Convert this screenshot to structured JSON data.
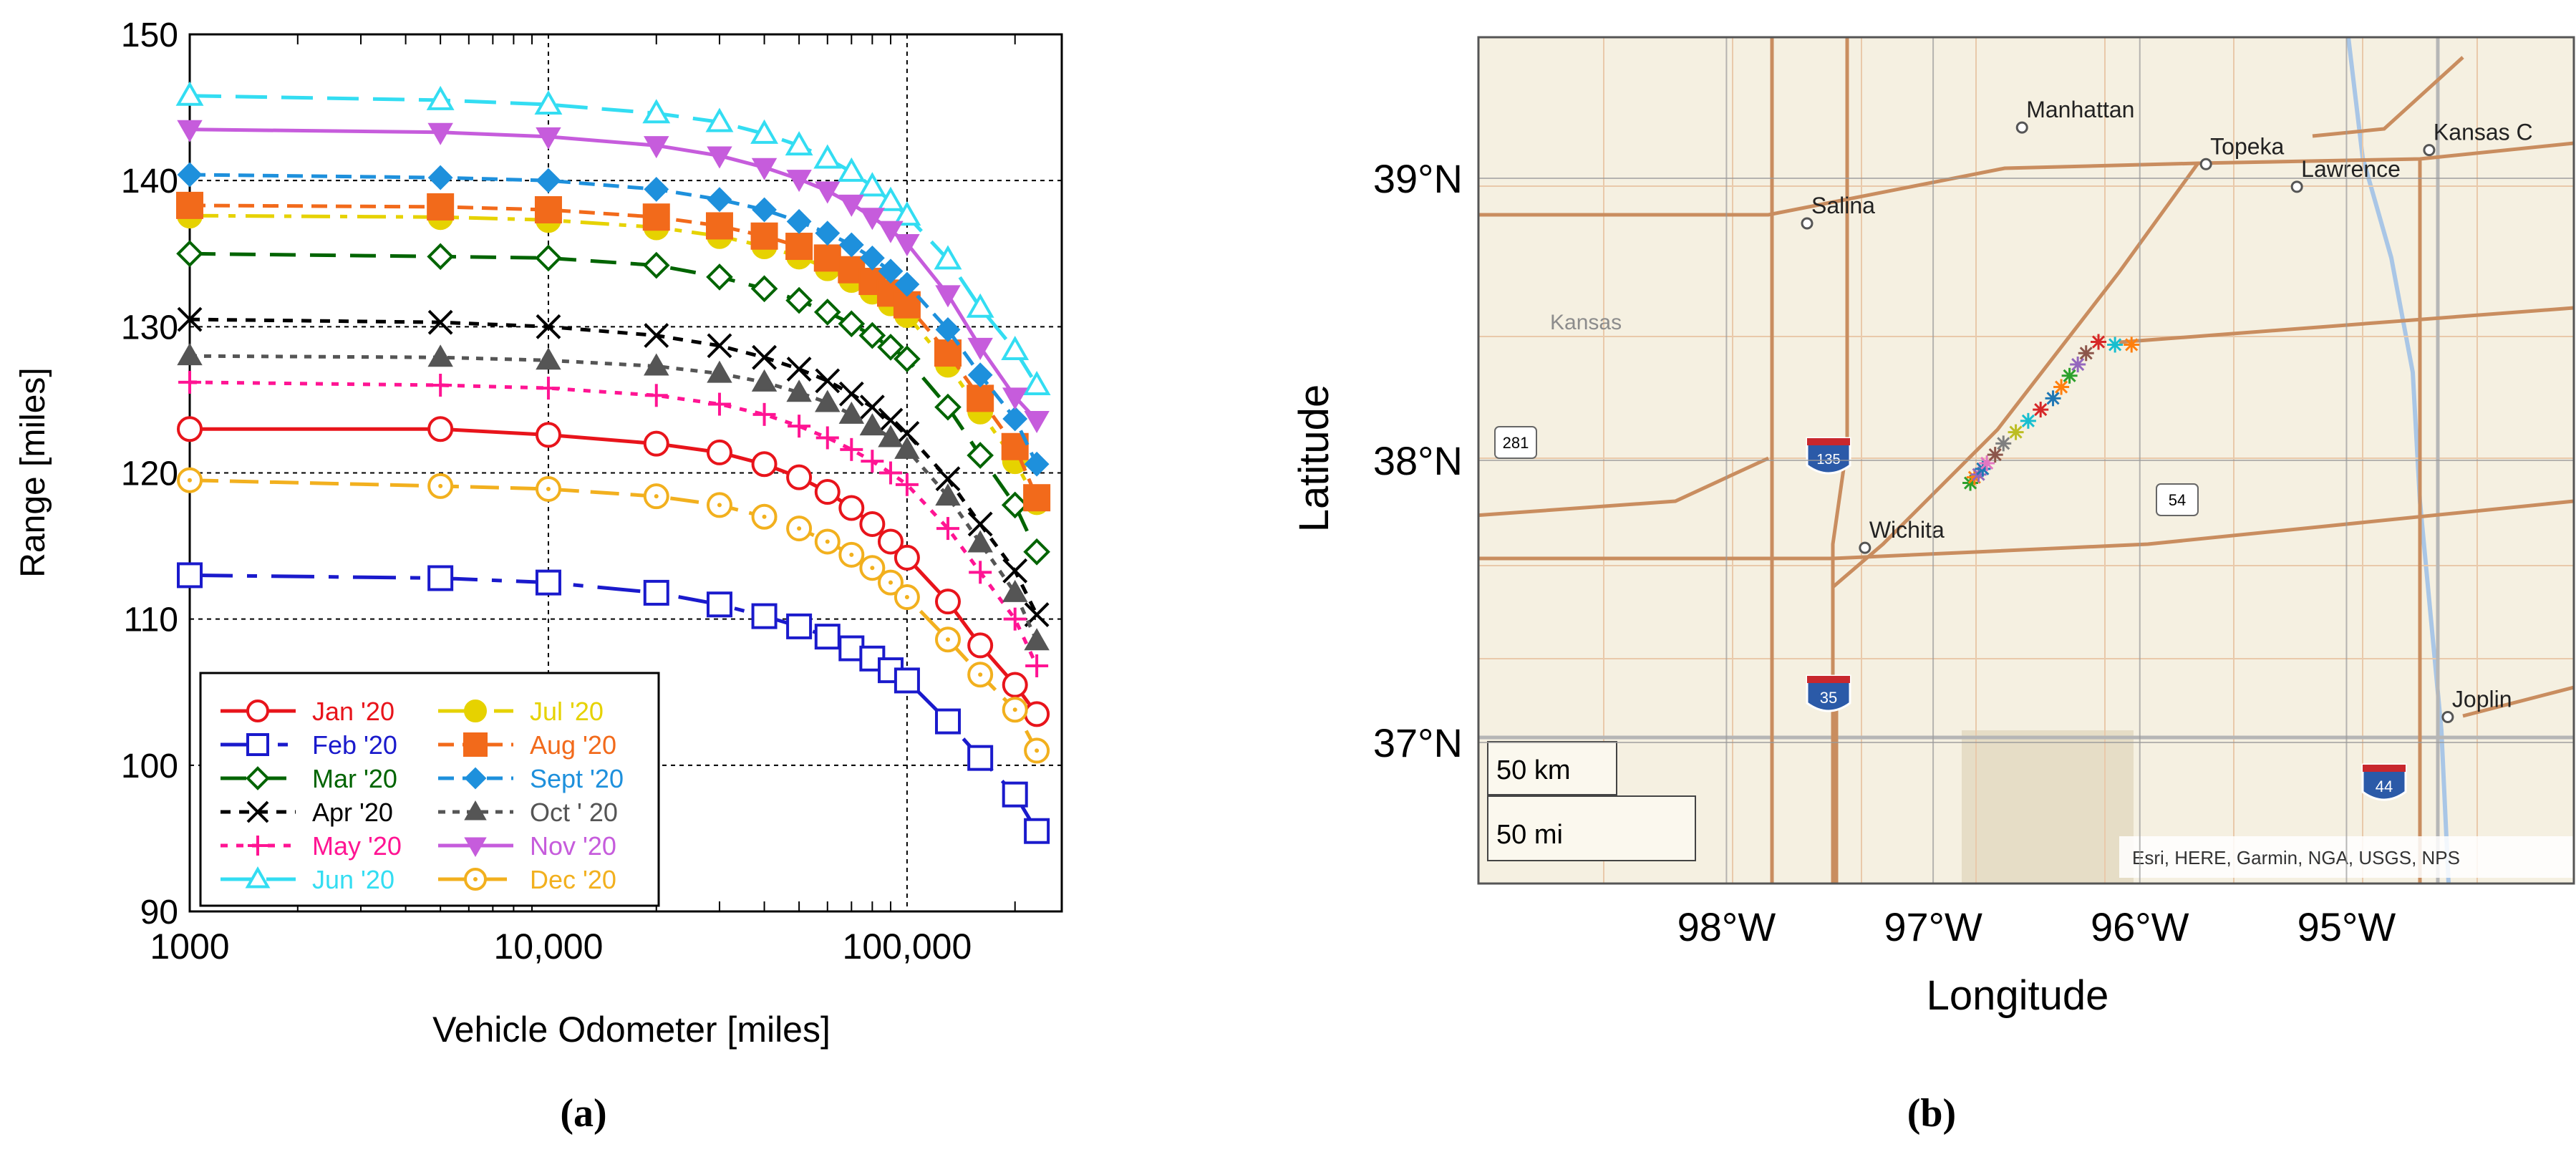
{
  "chart_data": [
    {
      "type": "line",
      "panel_label": "(a)",
      "xscale": "log",
      "xlim": [
        1000,
        270000
      ],
      "ylim": [
        90,
        150
      ],
      "xlabel": "Vehicle Odometer [miles]",
      "ylabel": "Range [miles]",
      "xticks": [
        {
          "value": 1000,
          "label": "1000"
        },
        {
          "value": 10000,
          "label": "10,000"
        },
        {
          "value": 100000,
          "label": "100,000"
        }
      ],
      "yticks": [
        90,
        100,
        110,
        120,
        130,
        140,
        150
      ],
      "grid": true,
      "legend_position": "lower-left",
      "x": [
        1000,
        5000,
        10000,
        20000,
        30000,
        40000,
        50000,
        60000,
        70000,
        80000,
        90000,
        100000,
        130000,
        160000,
        200000,
        230000
      ],
      "series": [
        {
          "name": "Jan '20",
          "color": "#e8141b",
          "dash": "",
          "marker": "circle-open",
          "legend_col": 0,
          "values": [
            123,
            123,
            122.6,
            122,
            121.4,
            120.6,
            119.7,
            118.7,
            117.6,
            116.5,
            115.3,
            114.2,
            111.2,
            108.2,
            105.5,
            103.5
          ],
          "marker_idx": [
            0,
            1,
            2,
            3,
            4,
            5,
            6,
            7,
            8,
            9,
            10,
            11,
            12,
            13,
            14,
            15
          ]
        },
        {
          "name": "Feb '20",
          "color": "#1a1acc",
          "dash": "60 20 14 20",
          "marker": "square-open",
          "legend_col": 0,
          "values": [
            113,
            112.8,
            112.5,
            111.8,
            111,
            110.2,
            109.5,
            108.8,
            108,
            107.3,
            106.5,
            105.8,
            103,
            100.5,
            98,
            95.5
          ],
          "marker_idx": [
            0,
            1,
            2,
            3,
            4,
            5,
            6,
            7,
            8,
            9,
            10,
            11,
            12,
            13,
            14,
            15
          ]
        },
        {
          "name": "Mar '20",
          "color": "#006400",
          "dash": "36 20",
          "marker": "diamond-open",
          "legend_col": 0,
          "values": [
            135,
            134.8,
            134.7,
            134.2,
            133.4,
            132.6,
            131.8,
            131,
            130.2,
            129.4,
            128.6,
            127.8,
            124.5,
            121.2,
            117.8,
            114.6
          ],
          "marker_idx": [
            0,
            1,
            2,
            3,
            4,
            5,
            6,
            7,
            8,
            9,
            10,
            11,
            12,
            13,
            14,
            15
          ]
        },
        {
          "name": "Apr '20",
          "color": "#000000",
          "dash": "14 12",
          "marker": "x",
          "legend_col": 0,
          "values": [
            130.5,
            130.3,
            130,
            129.4,
            128.7,
            127.9,
            127.1,
            126.3,
            125.4,
            124.5,
            123.6,
            122.7,
            119.6,
            116.5,
            113.3,
            110.3
          ],
          "marker_idx": [
            0,
            1,
            2,
            3,
            4,
            5,
            6,
            7,
            8,
            9,
            10,
            11,
            12,
            13,
            14,
            15
          ]
        },
        {
          "name": "May '20",
          "color": "#ff1493",
          "dash": "10 12",
          "marker": "plus",
          "legend_col": 0,
          "values": [
            126.2,
            126,
            125.8,
            125.3,
            124.7,
            124,
            123.2,
            122.4,
            121.6,
            120.8,
            120,
            119.2,
            116.2,
            113.2,
            110,
            106.8
          ],
          "marker_idx": [
            0,
            1,
            2,
            3,
            4,
            5,
            6,
            7,
            8,
            9,
            10,
            11,
            12,
            13,
            14,
            15
          ]
        },
        {
          "name": "Jun '20",
          "color": "#33ddf2",
          "dash": "44 20",
          "marker": "triangle-up-open",
          "legend_col": 0,
          "values": [
            145.8,
            145.5,
            145.2,
            144.6,
            144,
            143.2,
            142.4,
            141.5,
            140.6,
            139.6,
            138.6,
            137.6,
            134.6,
            131.3,
            128.4,
            126
          ],
          "marker_idx": [
            0,
            1,
            2,
            3,
            4,
            5,
            6,
            7,
            8,
            9,
            10,
            11,
            12,
            13,
            14,
            15
          ]
        },
        {
          "name": "Jul '20",
          "color": "#e6d200",
          "dash": "40 14 10 14",
          "marker": "circle-filled",
          "legend_col": 1,
          "values": [
            137.6,
            137.5,
            137.3,
            136.8,
            136.2,
            135.5,
            134.8,
            134,
            133.2,
            132.4,
            131.6,
            130.8,
            127.4,
            124.2,
            120.8,
            118
          ],
          "marker_idx": [
            0,
            1,
            2,
            3,
            4,
            5,
            6,
            7,
            8,
            9,
            10,
            11,
            12,
            13,
            14,
            15
          ]
        },
        {
          "name": "Aug '20",
          "color": "#f26a1b",
          "dash": "22 12",
          "marker": "square-filled",
          "legend_col": 1,
          "values": [
            138.3,
            138.2,
            138,
            137.5,
            136.9,
            136.2,
            135.5,
            134.7,
            133.9,
            133.1,
            132.3,
            131.5,
            128.2,
            125.1,
            121.8,
            118.3
          ],
          "marker_idx": [
            0,
            1,
            2,
            3,
            4,
            5,
            6,
            7,
            8,
            9,
            10,
            11,
            12,
            13,
            14,
            15
          ]
        },
        {
          "name": "Sept '20",
          "color": "#1e90dc",
          "dash": "22 12",
          "marker": "diamond-filled",
          "legend_col": 1,
          "values": [
            140.4,
            140.2,
            140,
            139.4,
            138.7,
            138,
            137.2,
            136.4,
            135.6,
            134.7,
            133.8,
            132.9,
            129.8,
            126.7,
            123.7,
            120.6
          ],
          "marker_idx": [
            0,
            1,
            2,
            3,
            4,
            5,
            6,
            7,
            8,
            9,
            10,
            11,
            12,
            13,
            14,
            15
          ]
        },
        {
          "name": "Oct ' 20",
          "color": "#555555",
          "dash": "10 10",
          "marker": "triangle-up-filled",
          "legend_col": 1,
          "values": [
            128,
            127.9,
            127.7,
            127.3,
            126.8,
            126.2,
            125.5,
            124.8,
            124,
            123.2,
            122.4,
            121.6,
            118.4,
            115.2,
            111.8,
            108.5
          ],
          "marker_idx": [
            0,
            1,
            2,
            3,
            4,
            5,
            6,
            7,
            8,
            9,
            10,
            11,
            12,
            13,
            14,
            15
          ]
        },
        {
          "name": "Nov '20",
          "color": "#c65cdc",
          "dash": "",
          "marker": "triangle-down-filled",
          "legend_col": 1,
          "values": [
            143.5,
            143.3,
            143,
            142.4,
            141.7,
            140.9,
            140.1,
            139.3,
            138.4,
            137.5,
            136.6,
            135.7,
            132.2,
            128.6,
            125.2,
            123.6
          ],
          "marker_idx": [
            0,
            1,
            2,
            3,
            4,
            5,
            6,
            7,
            8,
            9,
            10,
            11,
            12,
            13,
            14,
            15
          ]
        },
        {
          "name": "Dec '20",
          "color": "#f2b01e",
          "dash": "40 16",
          "marker": "circle-dot-open",
          "legend_col": 1,
          "values": [
            119.5,
            119.1,
            118.9,
            118.4,
            117.8,
            117,
            116.2,
            115.3,
            114.4,
            113.5,
            112.5,
            111.5,
            108.6,
            106.2,
            103.8,
            101
          ],
          "marker_idx": [
            0,
            1,
            2,
            3,
            4,
            5,
            6,
            7,
            8,
            9,
            10,
            11,
            12,
            13,
            14,
            15
          ]
        }
      ]
    },
    {
      "type": "scatter",
      "panel_label": "(b)",
      "xlabel": "Longitude",
      "ylabel": "Latitude",
      "xlim": [
        -99.2,
        -93.9
      ],
      "ylim": [
        36.5,
        39.5
      ],
      "xticks": [
        {
          "value": -98,
          "label": "98°W"
        },
        {
          "value": -97,
          "label": "97°W"
        },
        {
          "value": -96,
          "label": "96°W"
        },
        {
          "value": -95,
          "label": "95°W"
        }
      ],
      "yticks": [
        {
          "value": 37,
          "label": "37°N"
        },
        {
          "value": 38,
          "label": "38°N"
        },
        {
          "value": 39,
          "label": "39°N"
        }
      ],
      "basemap_labels": {
        "cities": [
          {
            "name": "Manhattan",
            "lon": -96.57,
            "lat": 39.18
          },
          {
            "name": "Topeka",
            "lon": -95.68,
            "lat": 39.05
          },
          {
            "name": "Lawrence",
            "lon": -95.24,
            "lat": 38.97
          },
          {
            "name": "Kansas C",
            "lon": -94.6,
            "lat": 39.1
          },
          {
            "name": "Salina",
            "lon": -97.61,
            "lat": 38.84
          },
          {
            "name": "Wichita",
            "lon": -97.33,
            "lat": 37.69
          },
          {
            "name": "Joplin",
            "lon": -94.51,
            "lat": 37.09
          }
        ],
        "state_label": "Kansas",
        "shields": [
          "281",
          "135",
          "54",
          "35",
          "44"
        ],
        "scale_km": "50 km",
        "scale_mi": "50 mi",
        "attribution": "Esri, HERE, Garmin, NGA, USGS, NPS"
      },
      "points": [
        {
          "lon": -96.82,
          "lat": 37.92,
          "color": "#2ca02c"
        },
        {
          "lon": -96.8,
          "lat": 37.94,
          "color": "#ff7f0e"
        },
        {
          "lon": -96.78,
          "lat": 37.95,
          "color": "#9467bd"
        },
        {
          "lon": -96.76,
          "lat": 37.97,
          "color": "#1f77b4"
        },
        {
          "lon": -96.74,
          "lat": 37.99,
          "color": "#e377c2"
        },
        {
          "lon": -96.7,
          "lat": 38.02,
          "color": "#8c564b"
        },
        {
          "lon": -96.66,
          "lat": 38.06,
          "color": "#7f7f7f"
        },
        {
          "lon": -96.6,
          "lat": 38.1,
          "color": "#bcbd22"
        },
        {
          "lon": -96.54,
          "lat": 38.14,
          "color": "#17becf"
        },
        {
          "lon": -96.48,
          "lat": 38.18,
          "color": "#d62728"
        },
        {
          "lon": -96.42,
          "lat": 38.22,
          "color": "#1f77b4"
        },
        {
          "lon": -96.38,
          "lat": 38.26,
          "color": "#ff7f0e"
        },
        {
          "lon": -96.34,
          "lat": 38.3,
          "color": "#2ca02c"
        },
        {
          "lon": -96.3,
          "lat": 38.34,
          "color": "#9467bd"
        },
        {
          "lon": -96.26,
          "lat": 38.38,
          "color": "#8c564b"
        },
        {
          "lon": -96.2,
          "lat": 38.42,
          "color": "#d62728"
        },
        {
          "lon": -96.12,
          "lat": 38.41,
          "color": "#17becf"
        },
        {
          "lon": -96.04,
          "lat": 38.41,
          "color": "#ff7f0e"
        }
      ]
    }
  ]
}
